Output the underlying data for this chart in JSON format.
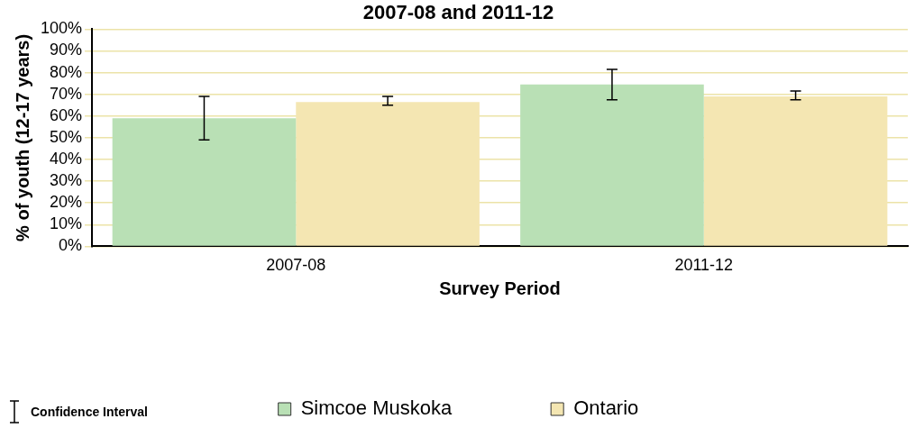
{
  "chart_data": {
    "type": "bar",
    "title": "2007-08 and 2011-12",
    "xlabel": "Survey Period",
    "ylabel": "% of youth (12-17 years)",
    "categories": [
      "2007-08",
      "2011-12"
    ],
    "series": [
      {
        "name": "Simcoe Muskoka",
        "color": "#b9e0b5",
        "values": [
          59,
          74.5
        ],
        "errors": [
          [
            49,
            69
          ],
          [
            67.5,
            81.5
          ]
        ]
      },
      {
        "name": "Ontario",
        "color": "#f4e6b2",
        "values": [
          66.5,
          69
        ],
        "errors": [
          [
            65,
            69
          ],
          [
            67.5,
            71.5
          ]
        ]
      }
    ],
    "ylim": [
      0,
      100
    ],
    "yticks": [
      {
        "value": 0,
        "label": "0%"
      },
      {
        "value": 10,
        "label": "10%"
      },
      {
        "value": 20,
        "label": "20%"
      },
      {
        "value": 30,
        "label": "30%"
      },
      {
        "value": 40,
        "label": "40%"
      },
      {
        "value": 50,
        "label": "50%"
      },
      {
        "value": 60,
        "label": "60%"
      },
      {
        "value": 70,
        "label": "70%"
      },
      {
        "value": 80,
        "label": "80%"
      },
      {
        "value": 90,
        "label": "90%"
      },
      {
        "value": 100,
        "label": "100%"
      }
    ],
    "grid": "y",
    "legend": "bottom",
    "annotations": [
      "Confidence Interval"
    ]
  }
}
